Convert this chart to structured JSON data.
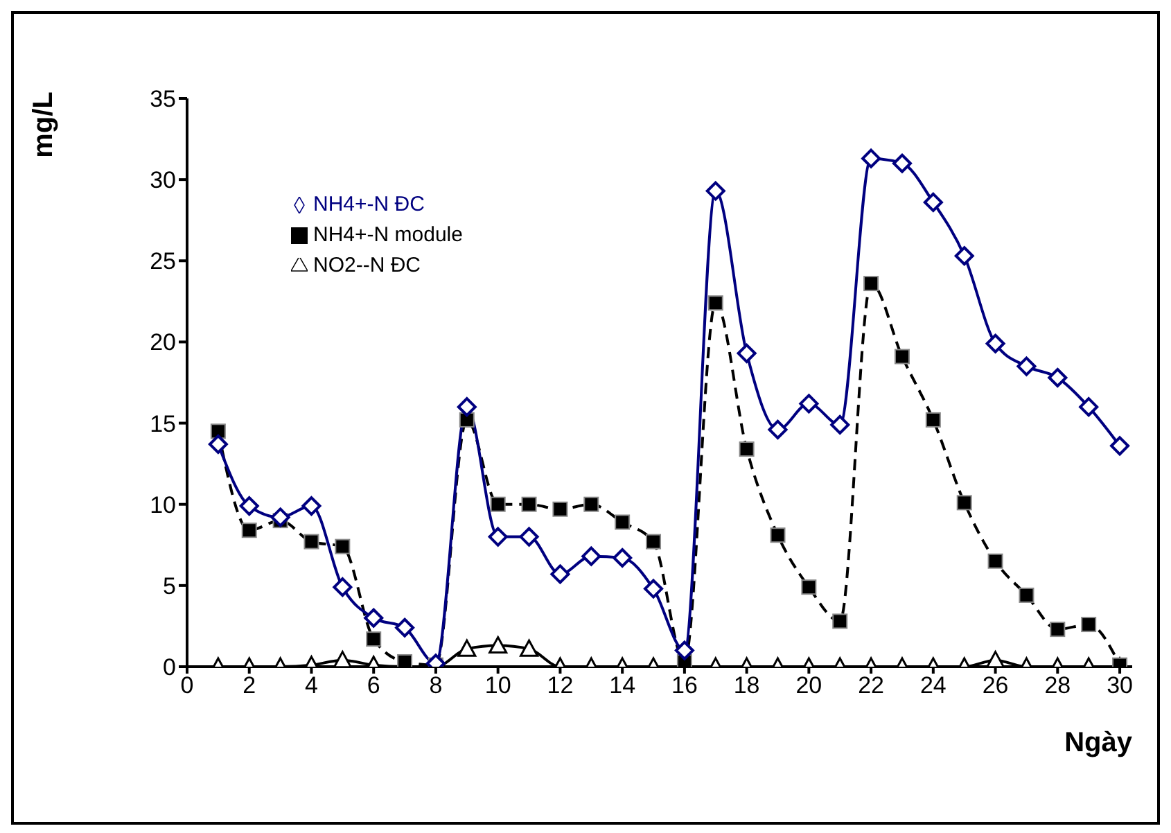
{
  "chart_data": {
    "type": "line",
    "xlabel": "Ngày",
    "ylabel": "mg/L",
    "x": [
      1,
      2,
      3,
      4,
      5,
      6,
      7,
      8,
      9,
      10,
      11,
      12,
      13,
      14,
      15,
      16,
      17,
      18,
      19,
      20,
      21,
      22,
      23,
      24,
      25,
      26,
      27,
      28,
      29,
      30
    ],
    "series": [
      {
        "name": "NH4+-N ĐC",
        "color": "#000080",
        "marker": "diamond",
        "line_style": "solid",
        "values": [
          13.7,
          9.9,
          9.2,
          9.9,
          4.9,
          3.0,
          2.4,
          0.2,
          16.0,
          8.0,
          8.0,
          5.7,
          6.8,
          6.7,
          4.8,
          1.0,
          29.3,
          19.3,
          14.6,
          16.2,
          14.9,
          31.3,
          31.0,
          28.6,
          25.3,
          19.9,
          18.5,
          17.8,
          16.0,
          13.6
        ]
      },
      {
        "name": "NH4+-N module",
        "color": "#000000",
        "marker": "square",
        "line_style": "dashed",
        "values": [
          14.5,
          8.4,
          9.0,
          7.7,
          7.4,
          1.7,
          0.3,
          0.1,
          15.2,
          10.0,
          10.0,
          9.7,
          10.0,
          8.9,
          7.7,
          0.3,
          22.4,
          13.4,
          8.1,
          4.9,
          2.8,
          23.6,
          19.1,
          15.2,
          10.1,
          6.5,
          4.4,
          2.3,
          2.6,
          0.1
        ]
      },
      {
        "name": "NO2--N ĐC",
        "color": "#000000",
        "marker": "triangle",
        "line_style": "solid",
        "values": [
          0,
          0,
          0,
          0.1,
          0.4,
          0.1,
          0,
          0,
          1.1,
          1.3,
          1.1,
          0,
          0,
          0,
          0,
          0,
          0,
          0,
          0,
          0,
          0,
          0,
          0,
          0,
          0,
          0.4,
          0,
          0,
          0,
          0
        ]
      }
    ],
    "xlim": [
      0,
      30.4
    ],
    "xticks": [
      0,
      2,
      4,
      6,
      8,
      10,
      12,
      14,
      16,
      18,
      20,
      22,
      24,
      26,
      28,
      30
    ],
    "ylim": [
      0,
      35
    ],
    "yticks": [
      0,
      5,
      10,
      15,
      20,
      25,
      30,
      35
    ],
    "grid": false,
    "legend": "top left"
  }
}
